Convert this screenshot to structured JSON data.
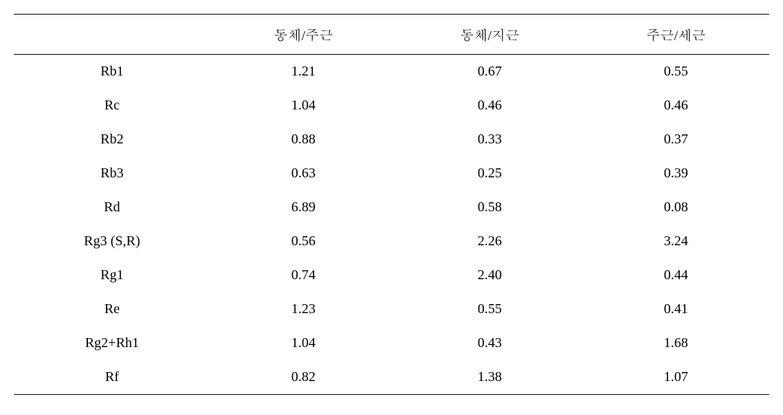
{
  "table": {
    "type": "table",
    "background_color": "#ffffff",
    "text_color": "#000000",
    "border_color": "#000000",
    "border_top_width": 1.5,
    "border_header_width": 1,
    "border_bottom_width": 1.5,
    "font_family": "Times New Roman, Batang, serif",
    "header_fontsize": 20,
    "cell_fontsize": 20,
    "row_padding_vertical": 13,
    "text_align": "center",
    "columns": [
      {
        "label": "",
        "width_percent": 26,
        "align": "center"
      },
      {
        "label": "동체/주근",
        "width_percent": 24.666,
        "align": "center"
      },
      {
        "label": "동체/지근",
        "width_percent": 24.666,
        "align": "center"
      },
      {
        "label": "주근/세근",
        "width_percent": 24.666,
        "align": "center"
      }
    ],
    "rows": [
      {
        "label": "Rb1",
        "values": [
          "1.21",
          "0.67",
          "0.55"
        ]
      },
      {
        "label": "Rc",
        "values": [
          "1.04",
          "0.46",
          "0.46"
        ]
      },
      {
        "label": "Rb2",
        "values": [
          "0.88",
          "0.33",
          "0.37"
        ]
      },
      {
        "label": "Rb3",
        "values": [
          "0.63",
          "0.25",
          "0.39"
        ]
      },
      {
        "label": "Rd",
        "values": [
          "6.89",
          "0.58",
          "0.08"
        ]
      },
      {
        "label": "Rg3 (S,R)",
        "values": [
          "0.56",
          "2.26",
          "3.24"
        ]
      },
      {
        "label": "Rg1",
        "values": [
          "0.74",
          "2.40",
          "0.44"
        ]
      },
      {
        "label": "Re",
        "values": [
          "1.23",
          "0.55",
          "0.41"
        ]
      },
      {
        "label": "Rg2+Rh1",
        "values": [
          "1.04",
          "0.43",
          "1.68"
        ]
      },
      {
        "label": "Rf",
        "values": [
          "0.82",
          "1.38",
          "1.07"
        ]
      }
    ]
  }
}
